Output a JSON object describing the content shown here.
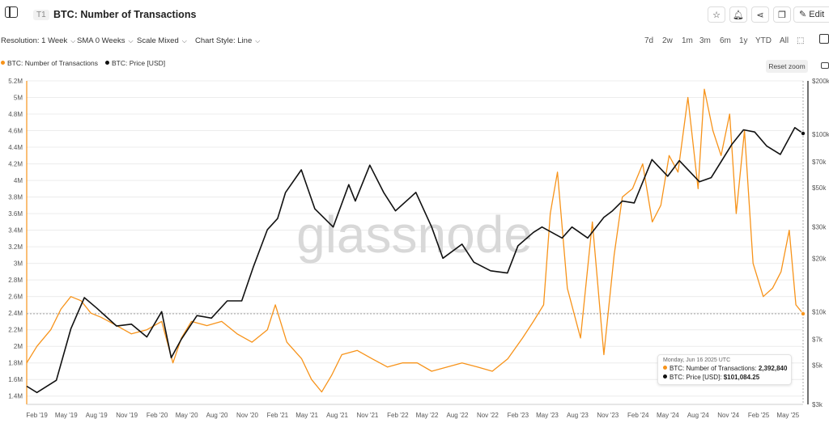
{
  "header": {
    "tier": "T1",
    "title": "BTC: Number of Transactions",
    "edit_label": "Edit"
  },
  "controls": {
    "resolution": "Resolution: 1 Week",
    "sma": "SMA 0 Weeks",
    "scale": "Scale Mixed",
    "style": "Chart Style: Line",
    "ranges": [
      "7d",
      "2w",
      "1m",
      "3m",
      "6m",
      "1y",
      "YTD",
      "All"
    ]
  },
  "reset_zoom_label": "Reset zoom",
  "colors": {
    "transactions": "#f7931a",
    "price": "#111111",
    "grid": "#ececec"
  },
  "chart_data": {
    "type": "line",
    "watermark": "glassnode",
    "x_tick_labels": [
      "Feb '19",
      "May '19",
      "Aug '19",
      "Nov '19",
      "Feb '20",
      "May '20",
      "Aug '20",
      "Nov '20",
      "Feb '21",
      "May '21",
      "Aug '21",
      "Nov '21",
      "Feb '22",
      "May '22",
      "Aug '22",
      "Nov '22",
      "Feb '23",
      "May '23",
      "Aug '23",
      "Nov '23",
      "Feb '24",
      "May '24",
      "Aug '24",
      "Nov '24",
      "Feb '25",
      "May '25"
    ],
    "y_left": {
      "label": "",
      "scale": "linear",
      "range": [
        1300000,
        5200000
      ],
      "tick_values": [
        1400000,
        1600000,
        1800000,
        2000000,
        2200000,
        2400000,
        2600000,
        2800000,
        3000000,
        3200000,
        3400000,
        3600000,
        3800000,
        4000000,
        4200000,
        4400000,
        4600000,
        4800000,
        5000000,
        5200000
      ],
      "tick_labels": [
        "1.4M",
        "1.6M",
        "1.8M",
        "2M",
        "2.2M",
        "2.4M",
        "2.6M",
        "2.8M",
        "3M",
        "3.2M",
        "3.4M",
        "3.6M",
        "3.8M",
        "4M",
        "4.2M",
        "4.4M",
        "4.6M",
        "4.8M",
        "5M",
        "5.2M"
      ]
    },
    "y_right": {
      "label": "",
      "scale": "log",
      "range": [
        3000,
        200000
      ],
      "tick_values": [
        3000,
        5000,
        7000,
        10000,
        20000,
        30000,
        50000,
        70000,
        100000,
        200000
      ],
      "tick_labels": [
        "$3k",
        "$5k",
        "$7k",
        "$10k",
        "$20k",
        "$30k",
        "$50k",
        "$70k",
        "$100k",
        "$200k"
      ]
    },
    "grid": true,
    "legend_position": "top-left",
    "series": [
      {
        "name": "BTC: Number of Transactions",
        "axis": "left",
        "color": "#f7931a",
        "x": [
          "2019-01-01",
          "2019-02-01",
          "2019-03-15",
          "2019-04-15",
          "2019-05-15",
          "2019-06-15",
          "2019-07-15",
          "2019-08-15",
          "2019-10-01",
          "2019-11-15",
          "2020-01-01",
          "2020-02-15",
          "2020-03-20",
          "2020-04-15",
          "2020-05-15",
          "2020-07-01",
          "2020-08-15",
          "2020-10-01",
          "2020-11-15",
          "2021-01-01",
          "2021-01-25",
          "2021-03-01",
          "2021-04-15",
          "2021-05-15",
          "2021-06-15",
          "2021-07-15",
          "2021-08-15",
          "2021-10-01",
          "2021-11-15",
          "2022-01-01",
          "2022-02-15",
          "2022-04-01",
          "2022-05-15",
          "2022-07-01",
          "2022-08-15",
          "2022-10-01",
          "2022-11-15",
          "2023-01-01",
          "2023-02-15",
          "2023-03-20",
          "2023-04-20",
          "2023-05-10",
          "2023-06-01",
          "2023-07-01",
          "2023-08-10",
          "2023-09-15",
          "2023-10-20",
          "2023-11-20",
          "2023-12-15",
          "2024-01-15",
          "2024-02-15",
          "2024-03-15",
          "2024-04-10",
          "2024-05-05",
          "2024-06-01",
          "2024-07-01",
          "2024-08-01",
          "2024-08-20",
          "2024-09-15",
          "2024-10-10",
          "2024-11-05",
          "2024-11-25",
          "2024-12-20",
          "2025-01-15",
          "2025-02-15",
          "2025-03-15",
          "2025-04-10",
          "2025-05-05",
          "2025-05-25",
          "2025-06-16"
        ],
        "values": [
          1800000,
          2000000,
          2200000,
          2450000,
          2600000,
          2550000,
          2400000,
          2350000,
          2250000,
          2150000,
          2200000,
          2300000,
          1800000,
          2100000,
          2300000,
          2250000,
          2300000,
          2150000,
          2050000,
          2200000,
          2500000,
          2050000,
          1850000,
          1600000,
          1450000,
          1650000,
          1900000,
          1950000,
          1850000,
          1750000,
          1800000,
          1800000,
          1700000,
          1750000,
          1800000,
          1750000,
          1700000,
          1850000,
          2100000,
          2300000,
          2500000,
          3600000,
          4100000,
          2700000,
          2100000,
          3500000,
          1900000,
          3100000,
          3800000,
          3900000,
          4200000,
          3500000,
          3700000,
          4300000,
          4100000,
          5000000,
          3900000,
          5100000,
          4600000,
          4300000,
          4800000,
          3600000,
          4600000,
          3000000,
          2600000,
          2700000,
          2900000,
          3400000,
          2500000,
          2392840
        ]
      },
      {
        "name": "BTC: Price [USD]",
        "axis": "right",
        "color": "#111111",
        "x": [
          "2019-01-01",
          "2019-02-01",
          "2019-04-01",
          "2019-05-15",
          "2019-06-25",
          "2019-08-01",
          "2019-10-01",
          "2019-11-15",
          "2020-01-01",
          "2020-02-15",
          "2020-03-15",
          "2020-04-15",
          "2020-06-01",
          "2020-07-15",
          "2020-09-01",
          "2020-10-15",
          "2020-11-20",
          "2021-01-01",
          "2021-02-01",
          "2021-02-25",
          "2021-04-14",
          "2021-05-25",
          "2021-07-20",
          "2021-09-05",
          "2021-09-25",
          "2021-11-08",
          "2021-12-20",
          "2022-01-25",
          "2022-03-28",
          "2022-05-15",
          "2022-06-18",
          "2022-08-15",
          "2022-09-20",
          "2022-11-10",
          "2022-12-31",
          "2023-02-01",
          "2023-03-20",
          "2023-04-15",
          "2023-06-15",
          "2023-07-15",
          "2023-09-01",
          "2023-10-20",
          "2023-11-15",
          "2023-12-15",
          "2024-01-20",
          "2024-03-14",
          "2024-05-01",
          "2024-06-05",
          "2024-08-05",
          "2024-09-10",
          "2024-11-12",
          "2024-12-17",
          "2025-01-20",
          "2025-02-25",
          "2025-04-08",
          "2025-05-22",
          "2025-06-16"
        ],
        "values": [
          3800,
          3500,
          4100,
          8000,
          12000,
          10500,
          8300,
          8500,
          7200,
          10000,
          5500,
          7000,
          9500,
          9200,
          11500,
          11500,
          18000,
          29000,
          33500,
          47000,
          63000,
          38000,
          30000,
          52000,
          42000,
          67000,
          47000,
          37000,
          47000,
          30000,
          20000,
          24000,
          19000,
          17000,
          16500,
          23500,
          28000,
          30000,
          26000,
          30000,
          26000,
          34000,
          37000,
          42000,
          41000,
          72000,
          58000,
          71000,
          54000,
          57000,
          88000,
          106000,
          103000,
          86000,
          77000,
          109000,
          101084.25
        ]
      }
    ]
  },
  "tooltip": {
    "date": "Monday, Jun 16 2025 UTC",
    "tx_label": "BTC: Number of Transactions:",
    "tx_value": "2,392,840",
    "price_label": "BTC: Price [USD]:",
    "price_value": "$101,084.25"
  }
}
